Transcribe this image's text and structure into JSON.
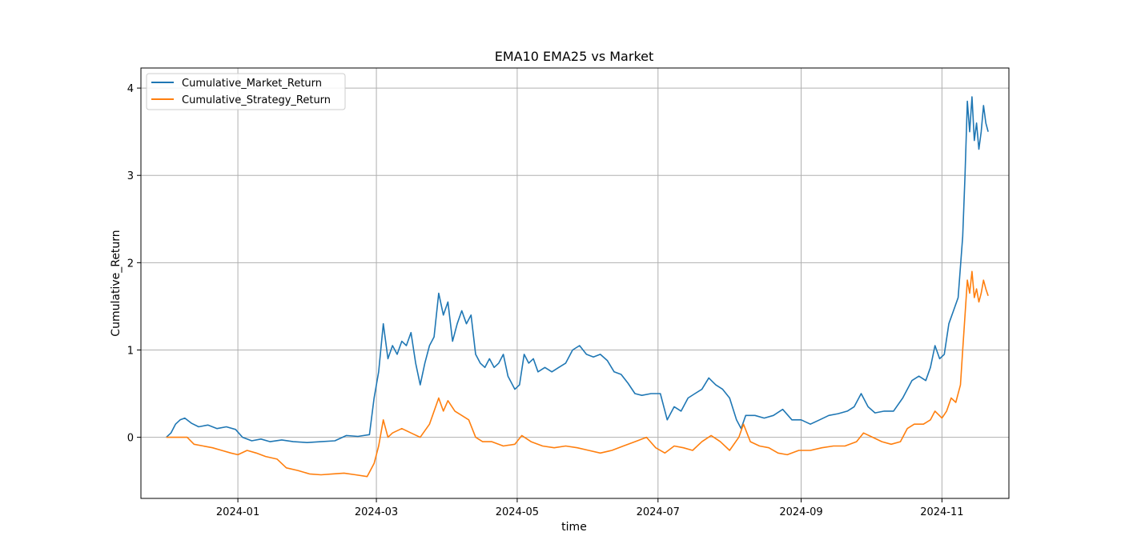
{
  "chart_data": {
    "type": "line",
    "title": "EMA10 EMA25 vs Market",
    "xlabel": "time",
    "ylabel": "Cumulative_Return",
    "x_axis_type": "date",
    "xlim": [
      "2023-11-20",
      "2024-11-30"
    ],
    "ylim": [
      -0.7,
      4.23
    ],
    "x_ticks": [
      "2024-01-01",
      "2024-03-01",
      "2024-05-01",
      "2024-07-01",
      "2024-09-01",
      "2024-11-01"
    ],
    "x_tick_labels": [
      "2024-01",
      "2024-03",
      "2024-05",
      "2024-07",
      "2024-09",
      "2024-11"
    ],
    "y_ticks": [
      0,
      1,
      2,
      3,
      4
    ],
    "y_tick_labels": [
      "0",
      "1",
      "2",
      "3",
      "4"
    ],
    "grid": true,
    "legend_position": "top-left",
    "series": [
      {
        "name": "Cumulative_Market_Return",
        "color": "#1f77b4",
        "points": [
          [
            "2023-12-01",
            0.0
          ],
          [
            "2023-12-03",
            0.05
          ],
          [
            "2023-12-05",
            0.15
          ],
          [
            "2023-12-07",
            0.2
          ],
          [
            "2023-12-09",
            0.22
          ],
          [
            "2023-12-12",
            0.16
          ],
          [
            "2023-12-15",
            0.12
          ],
          [
            "2023-12-19",
            0.14
          ],
          [
            "2023-12-23",
            0.1
          ],
          [
            "2023-12-27",
            0.12
          ],
          [
            "2023-12-31",
            0.09
          ],
          [
            "2024-01-03",
            0.0
          ],
          [
            "2024-01-07",
            -0.04
          ],
          [
            "2024-01-11",
            -0.02
          ],
          [
            "2024-01-15",
            -0.05
          ],
          [
            "2024-01-20",
            -0.03
          ],
          [
            "2024-01-25",
            -0.05
          ],
          [
            "2024-01-31",
            -0.06
          ],
          [
            "2024-02-06",
            -0.05
          ],
          [
            "2024-02-12",
            -0.04
          ],
          [
            "2024-02-17",
            0.02
          ],
          [
            "2024-02-22",
            0.01
          ],
          [
            "2024-02-27",
            0.03
          ],
          [
            "2024-02-29",
            0.45
          ],
          [
            "2024-03-02",
            0.75
          ],
          [
            "2024-03-04",
            1.3
          ],
          [
            "2024-03-06",
            0.9
          ],
          [
            "2024-03-08",
            1.05
          ],
          [
            "2024-03-10",
            0.95
          ],
          [
            "2024-03-12",
            1.1
          ],
          [
            "2024-03-14",
            1.05
          ],
          [
            "2024-03-16",
            1.2
          ],
          [
            "2024-03-18",
            0.85
          ],
          [
            "2024-03-20",
            0.6
          ],
          [
            "2024-03-22",
            0.85
          ],
          [
            "2024-03-24",
            1.05
          ],
          [
            "2024-03-26",
            1.15
          ],
          [
            "2024-03-28",
            1.65
          ],
          [
            "2024-03-30",
            1.4
          ],
          [
            "2024-04-01",
            1.55
          ],
          [
            "2024-04-03",
            1.1
          ],
          [
            "2024-04-05",
            1.3
          ],
          [
            "2024-04-07",
            1.45
          ],
          [
            "2024-04-09",
            1.3
          ],
          [
            "2024-04-11",
            1.4
          ],
          [
            "2024-04-13",
            0.95
          ],
          [
            "2024-04-15",
            0.85
          ],
          [
            "2024-04-17",
            0.8
          ],
          [
            "2024-04-19",
            0.9
          ],
          [
            "2024-04-21",
            0.8
          ],
          [
            "2024-04-23",
            0.85
          ],
          [
            "2024-04-25",
            0.95
          ],
          [
            "2024-04-27",
            0.7
          ],
          [
            "2024-04-30",
            0.55
          ],
          [
            "2024-05-02",
            0.6
          ],
          [
            "2024-05-04",
            0.95
          ],
          [
            "2024-05-06",
            0.85
          ],
          [
            "2024-05-08",
            0.9
          ],
          [
            "2024-05-10",
            0.75
          ],
          [
            "2024-05-13",
            0.8
          ],
          [
            "2024-05-16",
            0.75
          ],
          [
            "2024-05-19",
            0.8
          ],
          [
            "2024-05-22",
            0.85
          ],
          [
            "2024-05-25",
            1.0
          ],
          [
            "2024-05-28",
            1.05
          ],
          [
            "2024-05-31",
            0.95
          ],
          [
            "2024-06-03",
            0.92
          ],
          [
            "2024-06-06",
            0.95
          ],
          [
            "2024-06-09",
            0.88
          ],
          [
            "2024-06-12",
            0.75
          ],
          [
            "2024-06-15",
            0.72
          ],
          [
            "2024-06-18",
            0.62
          ],
          [
            "2024-06-21",
            0.5
          ],
          [
            "2024-06-24",
            0.48
          ],
          [
            "2024-06-28",
            0.5
          ],
          [
            "2024-07-02",
            0.5
          ],
          [
            "2024-07-05",
            0.2
          ],
          [
            "2024-07-08",
            0.35
          ],
          [
            "2024-07-11",
            0.3
          ],
          [
            "2024-07-14",
            0.45
          ],
          [
            "2024-07-17",
            0.5
          ],
          [
            "2024-07-20",
            0.55
          ],
          [
            "2024-07-23",
            0.68
          ],
          [
            "2024-07-26",
            0.6
          ],
          [
            "2024-07-29",
            0.55
          ],
          [
            "2024-08-01",
            0.45
          ],
          [
            "2024-08-04",
            0.2
          ],
          [
            "2024-08-06",
            0.1
          ],
          [
            "2024-08-08",
            0.25
          ],
          [
            "2024-08-12",
            0.25
          ],
          [
            "2024-08-16",
            0.22
          ],
          [
            "2024-08-20",
            0.25
          ],
          [
            "2024-08-24",
            0.32
          ],
          [
            "2024-08-28",
            0.2
          ],
          [
            "2024-09-01",
            0.2
          ],
          [
            "2024-09-05",
            0.15
          ],
          [
            "2024-09-09",
            0.2
          ],
          [
            "2024-09-13",
            0.25
          ],
          [
            "2024-09-17",
            0.27
          ],
          [
            "2024-09-21",
            0.3
          ],
          [
            "2024-09-24",
            0.35
          ],
          [
            "2024-09-27",
            0.5
          ],
          [
            "2024-09-30",
            0.35
          ],
          [
            "2024-10-03",
            0.28
          ],
          [
            "2024-10-07",
            0.3
          ],
          [
            "2024-10-11",
            0.3
          ],
          [
            "2024-10-15",
            0.45
          ],
          [
            "2024-10-19",
            0.65
          ],
          [
            "2024-10-22",
            0.7
          ],
          [
            "2024-10-25",
            0.65
          ],
          [
            "2024-10-27",
            0.8
          ],
          [
            "2024-10-29",
            1.05
          ],
          [
            "2024-10-31",
            0.9
          ],
          [
            "2024-11-02",
            0.95
          ],
          [
            "2024-11-04",
            1.3
          ],
          [
            "2024-11-06",
            1.45
          ],
          [
            "2024-11-08",
            1.6
          ],
          [
            "2024-11-10",
            2.3
          ],
          [
            "2024-11-11",
            3.0
          ],
          [
            "2024-11-12",
            3.85
          ],
          [
            "2024-11-13",
            3.5
          ],
          [
            "2024-11-14",
            3.9
          ],
          [
            "2024-11-15",
            3.4
          ],
          [
            "2024-11-16",
            3.6
          ],
          [
            "2024-11-17",
            3.3
          ],
          [
            "2024-11-18",
            3.5
          ],
          [
            "2024-11-19",
            3.8
          ],
          [
            "2024-11-20",
            3.6
          ],
          [
            "2024-11-21",
            3.5
          ]
        ]
      },
      {
        "name": "Cumulative_Strategy_Return",
        "color": "#ff7f0e",
        "points": [
          [
            "2023-12-01",
            0.0
          ],
          [
            "2023-12-10",
            0.0
          ],
          [
            "2023-12-13",
            -0.08
          ],
          [
            "2023-12-17",
            -0.1
          ],
          [
            "2023-12-21",
            -0.12
          ],
          [
            "2023-12-25",
            -0.15
          ],
          [
            "2023-12-29",
            -0.18
          ],
          [
            "2024-01-01",
            -0.2
          ],
          [
            "2024-01-05",
            -0.15
          ],
          [
            "2024-01-09",
            -0.18
          ],
          [
            "2024-01-13",
            -0.22
          ],
          [
            "2024-01-18",
            -0.25
          ],
          [
            "2024-01-22",
            -0.35
          ],
          [
            "2024-01-27",
            -0.38
          ],
          [
            "2024-02-01",
            -0.42
          ],
          [
            "2024-02-06",
            -0.43
          ],
          [
            "2024-02-11",
            -0.42
          ],
          [
            "2024-02-16",
            -0.41
          ],
          [
            "2024-02-21",
            -0.43
          ],
          [
            "2024-02-26",
            -0.45
          ],
          [
            "2024-02-29",
            -0.3
          ],
          [
            "2024-03-02",
            -0.1
          ],
          [
            "2024-03-04",
            0.2
          ],
          [
            "2024-03-06",
            0.0
          ],
          [
            "2024-03-08",
            0.05
          ],
          [
            "2024-03-12",
            0.1
          ],
          [
            "2024-03-16",
            0.05
          ],
          [
            "2024-03-20",
            0.0
          ],
          [
            "2024-03-24",
            0.15
          ],
          [
            "2024-03-28",
            0.45
          ],
          [
            "2024-03-30",
            0.3
          ],
          [
            "2024-04-01",
            0.42
          ],
          [
            "2024-04-04",
            0.3
          ],
          [
            "2024-04-07",
            0.25
          ],
          [
            "2024-04-10",
            0.2
          ],
          [
            "2024-04-13",
            0.0
          ],
          [
            "2024-04-16",
            -0.05
          ],
          [
            "2024-04-20",
            -0.05
          ],
          [
            "2024-04-25",
            -0.1
          ],
          [
            "2024-04-30",
            -0.08
          ],
          [
            "2024-05-03",
            0.02
          ],
          [
            "2024-05-07",
            -0.05
          ],
          [
            "2024-05-12",
            -0.1
          ],
          [
            "2024-05-17",
            -0.12
          ],
          [
            "2024-05-22",
            -0.1
          ],
          [
            "2024-05-27",
            -0.12
          ],
          [
            "2024-06-01",
            -0.15
          ],
          [
            "2024-06-06",
            -0.18
          ],
          [
            "2024-06-11",
            -0.15
          ],
          [
            "2024-06-16",
            -0.1
          ],
          [
            "2024-06-21",
            -0.05
          ],
          [
            "2024-06-26",
            0.0
          ],
          [
            "2024-06-30",
            -0.12
          ],
          [
            "2024-07-04",
            -0.18
          ],
          [
            "2024-07-08",
            -0.1
          ],
          [
            "2024-07-12",
            -0.12
          ],
          [
            "2024-07-16",
            -0.15
          ],
          [
            "2024-07-20",
            -0.05
          ],
          [
            "2024-07-24",
            0.02
          ],
          [
            "2024-07-28",
            -0.05
          ],
          [
            "2024-08-01",
            -0.15
          ],
          [
            "2024-08-05",
            0.0
          ],
          [
            "2024-08-07",
            0.15
          ],
          [
            "2024-08-10",
            -0.05
          ],
          [
            "2024-08-14",
            -0.1
          ],
          [
            "2024-08-18",
            -0.12
          ],
          [
            "2024-08-22",
            -0.18
          ],
          [
            "2024-08-26",
            -0.2
          ],
          [
            "2024-08-31",
            -0.15
          ],
          [
            "2024-09-05",
            -0.15
          ],
          [
            "2024-09-10",
            -0.12
          ],
          [
            "2024-09-15",
            -0.1
          ],
          [
            "2024-09-20",
            -0.1
          ],
          [
            "2024-09-25",
            -0.05
          ],
          [
            "2024-09-28",
            0.05
          ],
          [
            "2024-10-02",
            0.0
          ],
          [
            "2024-10-06",
            -0.05
          ],
          [
            "2024-10-10",
            -0.08
          ],
          [
            "2024-10-14",
            -0.05
          ],
          [
            "2024-10-17",
            0.1
          ],
          [
            "2024-10-20",
            0.15
          ],
          [
            "2024-10-24",
            0.15
          ],
          [
            "2024-10-27",
            0.2
          ],
          [
            "2024-10-29",
            0.3
          ],
          [
            "2024-11-01",
            0.22
          ],
          [
            "2024-11-03",
            0.3
          ],
          [
            "2024-11-05",
            0.45
          ],
          [
            "2024-11-07",
            0.4
          ],
          [
            "2024-11-09",
            0.6
          ],
          [
            "2024-11-10",
            1.0
          ],
          [
            "2024-11-12",
            1.8
          ],
          [
            "2024-11-13",
            1.65
          ],
          [
            "2024-11-14",
            1.9
          ],
          [
            "2024-11-15",
            1.6
          ],
          [
            "2024-11-16",
            1.7
          ],
          [
            "2024-11-17",
            1.55
          ],
          [
            "2024-11-18",
            1.65
          ],
          [
            "2024-11-19",
            1.8
          ],
          [
            "2024-11-20",
            1.7
          ],
          [
            "2024-11-21",
            1.62
          ]
        ]
      }
    ]
  }
}
